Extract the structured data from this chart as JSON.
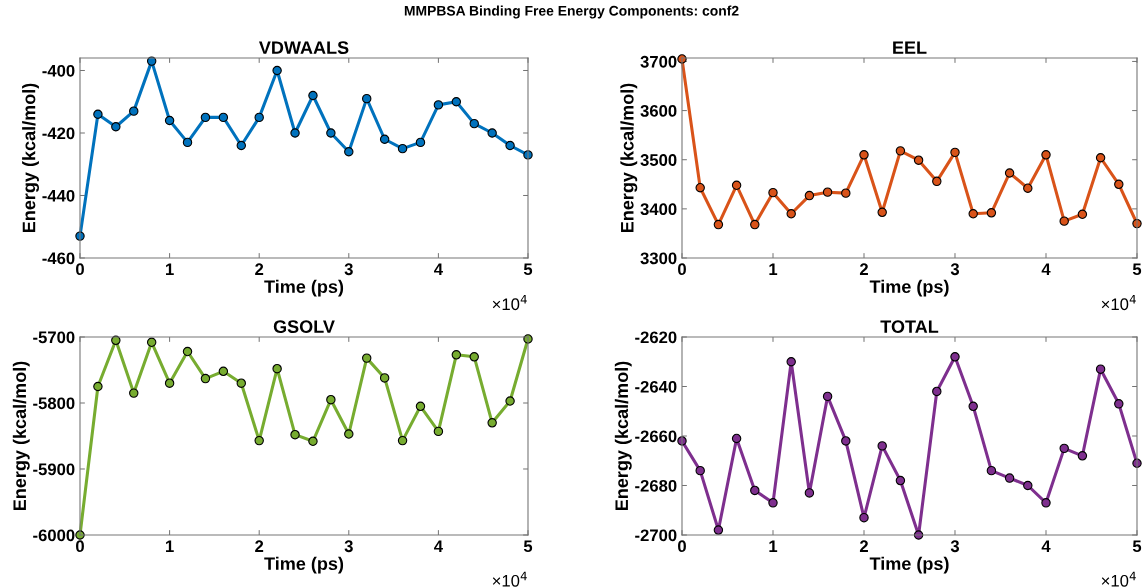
{
  "chart_data": [
    {
      "type": "line",
      "title": "VDWAALS",
      "xlabel": "Time (ps)",
      "ylabel": "Energy (kcal/mol)",
      "annotations": [
        "MMPBSA Binding Free Energy Components: conf2",
        "×10$^{4}$"
      ],
      "x": [
        0,
        0.2,
        0.4,
        0.6,
        0.8,
        1,
        1.2,
        1.4,
        1.6,
        1.8,
        2,
        2.2,
        2.4,
        2.6,
        2.8,
        3,
        3.2,
        3.4,
        3.6,
        3.8,
        4,
        4.2,
        4.4,
        4.6,
        4.8,
        5
      ],
      "series": [
        {
          "color": "#0072bd",
          "values": [
            -453,
            -414,
            -418,
            -413,
            -397,
            -416,
            -423,
            -415,
            -415,
            -424,
            -415,
            -400,
            -420,
            -408,
            -420,
            -426,
            -409,
            -422,
            -425,
            -423,
            -411,
            -410,
            -417,
            -420,
            -424,
            -427
          ]
        }
      ],
      "xlim": [
        0,
        5
      ],
      "xticks": [
        0,
        1,
        2,
        3,
        4,
        5
      ],
      "ylim": [
        -460,
        -396
      ],
      "yticks": [
        -460,
        -440,
        -420,
        -400
      ],
      "marker": "circle",
      "line_style": "solid",
      "grid": false,
      "legend": false
    },
    {
      "type": "line",
      "title": "EEL",
      "xlabel": "Time (ps)",
      "ylabel": "Energy (kcal/mol)",
      "annotations": [
        "×10$^{4}$"
      ],
      "x": [
        0,
        0.2,
        0.4,
        0.6,
        0.8,
        1,
        1.2,
        1.4,
        1.6,
        1.8,
        2,
        2.2,
        2.4,
        2.6,
        2.8,
        3,
        3.2,
        3.4,
        3.6,
        3.8,
        4,
        4.2,
        4.4,
        4.6,
        4.8,
        5
      ],
      "series": [
        {
          "color": "#d95319",
          "values": [
            3705,
            3443,
            3368,
            3448,
            3368,
            3433,
            3390,
            3427,
            3434,
            3432,
            3510,
            3393,
            3518,
            3499,
            3456,
            3515,
            3390,
            3392,
            3473,
            3442,
            3510,
            3375,
            3389,
            3504,
            3450,
            3370
          ]
        }
      ],
      "xlim": [
        0,
        5
      ],
      "xticks": [
        0,
        1,
        2,
        3,
        4,
        5
      ],
      "ylim": [
        3300,
        3707
      ],
      "yticks": [
        3300,
        3400,
        3500,
        3600,
        3700
      ],
      "marker": "circle",
      "line_style": "solid",
      "grid": false,
      "legend": false
    },
    {
      "type": "line",
      "title": "GSOLV",
      "xlabel": "Time (ps)",
      "ylabel": "Energy (kcal/mol)",
      "annotations": [
        "×10$^{4}$"
      ],
      "x": [
        0,
        0.2,
        0.4,
        0.6,
        0.8,
        1,
        1.2,
        1.4,
        1.6,
        1.8,
        2,
        2.2,
        2.4,
        2.6,
        2.8,
        3,
        3.2,
        3.4,
        3.6,
        3.8,
        4,
        4.2,
        4.4,
        4.6,
        4.8,
        5
      ],
      "series": [
        {
          "color": "#77ac30",
          "values": [
            -6000,
            -5775,
            -5705,
            -5785,
            -5708,
            -5770,
            -5722,
            -5763,
            -5752,
            -5770,
            -5857,
            -5748,
            -5848,
            -5858,
            -5795,
            -5847,
            -5732,
            -5762,
            -5857,
            -5805,
            -5843,
            -5727,
            -5730,
            -5830,
            -5797,
            -5703
          ]
        }
      ],
      "xlim": [
        0,
        5
      ],
      "xticks": [
        0,
        1,
        2,
        3,
        4,
        5
      ],
      "ylim": [
        -6000,
        -5700
      ],
      "yticks": [
        -6000,
        -5900,
        -5800,
        -5700
      ],
      "marker": "circle",
      "line_style": "solid",
      "grid": false,
      "legend": false
    },
    {
      "type": "line",
      "title": "TOTAL",
      "xlabel": "Time (ps)",
      "ylabel": "Energy (kcal/mol)",
      "annotations": [
        "×10$^{4}$"
      ],
      "x": [
        0,
        0.2,
        0.4,
        0.6,
        0.8,
        1,
        1.2,
        1.4,
        1.6,
        1.8,
        2,
        2.2,
        2.4,
        2.6,
        2.8,
        3,
        3.2,
        3.4,
        3.6,
        3.8,
        4,
        4.2,
        4.4,
        4.6,
        4.8,
        5
      ],
      "series": [
        {
          "color": "#7e2f8e",
          "values": [
            -2662,
            -2674,
            -2698,
            -2661,
            -2682,
            -2687,
            -2630,
            -2683,
            -2644,
            -2662,
            -2693,
            -2664,
            -2678,
            -2700,
            -2642,
            -2628,
            -2648,
            -2674,
            -2677,
            -2680,
            -2687,
            -2665,
            -2668,
            -2633,
            -2647,
            -2671
          ]
        }
      ],
      "xlim": [
        0,
        5
      ],
      "xticks": [
        0,
        1,
        2,
        3,
        4,
        5
      ],
      "ylim": [
        -2700,
        -2620
      ],
      "yticks": [
        -2700,
        -2680,
        -2660,
        -2640,
        -2620
      ],
      "marker": "circle",
      "line_style": "solid",
      "grid": false,
      "legend": false
    }
  ]
}
